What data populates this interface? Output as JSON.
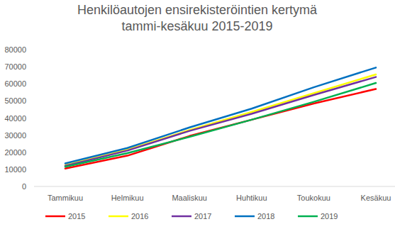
{
  "chart_data": {
    "type": "line",
    "title": "Henkilöautojen ensirekisteröintien kertymä tammi-kesäkuu 2015-2019",
    "categories": [
      "Tammikuu",
      "Helmikuu",
      "Maaliskuu",
      "Huhtikuu",
      "Toukokuu",
      "Kesäkuu"
    ],
    "series": [
      {
        "name": "2015",
        "color": "#ff0000",
        "values": [
          10500,
          18000,
          29500,
          39000,
          48500,
          57000
        ]
      },
      {
        "name": "2016",
        "color": "#ffff00",
        "values": [
          12500,
          21500,
          33000,
          43500,
          54500,
          65500
        ]
      },
      {
        "name": "2017",
        "color": "#7030a0",
        "values": [
          12000,
          21000,
          32500,
          42500,
          53500,
          64000
        ]
      },
      {
        "name": "2018",
        "color": "#0070c0",
        "values": [
          13500,
          22500,
          34500,
          45500,
          58000,
          69500
        ]
      },
      {
        "name": "2019",
        "color": "#00b050",
        "values": [
          11500,
          19500,
          29000,
          39000,
          49500,
          60500
        ]
      }
    ],
    "ylim": [
      0,
      80000
    ],
    "yticks": [
      0,
      10000,
      20000,
      30000,
      40000,
      50000,
      60000,
      70000,
      80000
    ],
    "grid": false,
    "legend": "bottom"
  }
}
